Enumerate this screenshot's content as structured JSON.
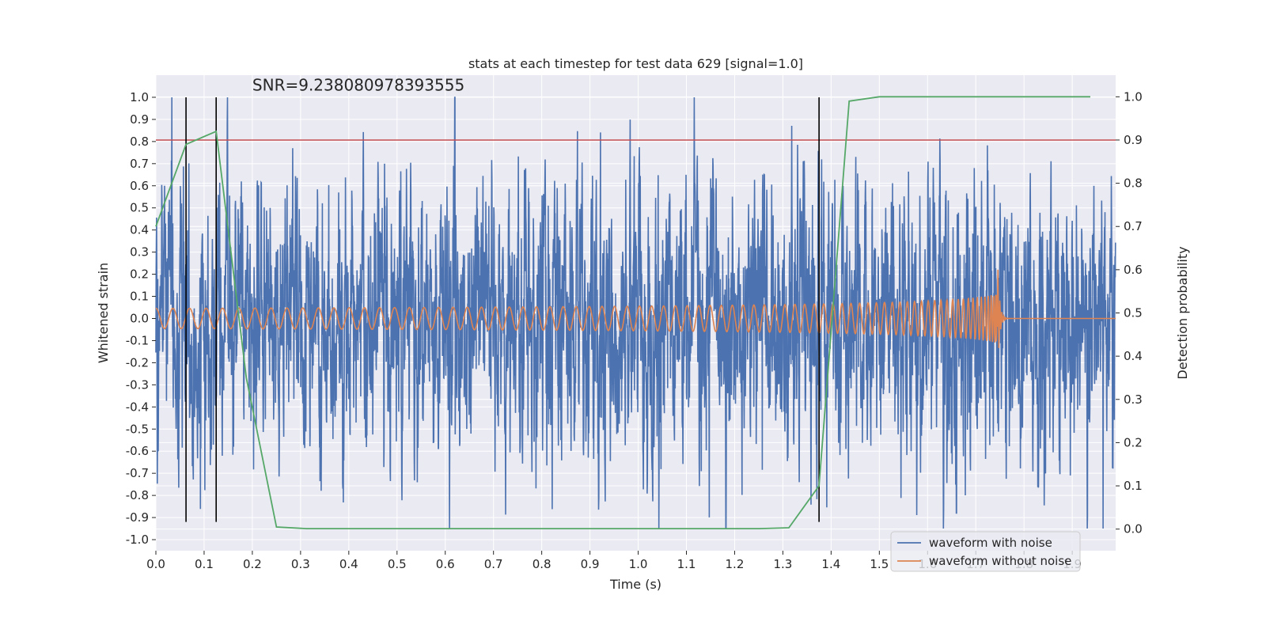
{
  "chart_data": {
    "type": "line",
    "title": "stats at each timestep for test data 629 [signal=1.0]",
    "annotation": "SNR=9.238080978393555",
    "xlabel": "Time (s)",
    "ylabel_left": "Whitened strain",
    "ylabel_right": "Detection probability",
    "xlim": [
      0.0,
      1.99
    ],
    "ylim_left": [
      -1.05,
      1.1
    ],
    "ylim_right": [
      -0.05,
      1.05
    ],
    "x_ticks": [
      "0.0",
      "0.1",
      "0.2",
      "0.3",
      "0.4",
      "0.5",
      "0.6",
      "0.7",
      "0.8",
      "0.9",
      "1.0",
      "1.1",
      "1.2",
      "1.3",
      "1.4",
      "1.5",
      "1.6",
      "1.7",
      "1.8",
      "1.9"
    ],
    "y_left_ticks": [
      "1.0",
      "0.9",
      "0.8",
      "0.7",
      "0.6",
      "0.5",
      "0.4",
      "0.3",
      "0.2",
      "0.1",
      "0.0",
      "-0.1",
      "-0.2",
      "-0.3",
      "-0.4",
      "-0.5",
      "-0.6",
      "-0.7",
      "-0.8",
      "-0.9",
      "-1.0"
    ],
    "y_right_ticks": [
      "1.0",
      "0.9",
      "0.8",
      "0.7",
      "0.6",
      "0.5",
      "0.4",
      "0.3",
      "0.2",
      "0.1",
      "0.0"
    ],
    "threshold": {
      "axis": "right",
      "value": 0.9,
      "color": "#c44e52"
    },
    "vertical_markers": {
      "x": [
        0.0625,
        0.125,
        1.375
      ],
      "ymin": -0.92,
      "ymax": 1.0,
      "color": "#000000"
    },
    "series": [
      {
        "name": "waveform with noise",
        "color": "#4c72b0",
        "axis": "left",
        "description": "dense whitened noisy strain, approx. uniform-gaussian noise with std ~0.3, peaks near +1.0 at t=0.62 and -0.88 at t=1.66",
        "sample_rate": 2048,
        "duration": 2.0
      },
      {
        "name": "waveform without noise",
        "color": "#dd8452",
        "axis": "left",
        "description": "chirp signal, amplitude ~0.05 rising to ~0.3 at merger t=1.74, ringdown to 0 by t=1.76"
      },
      {
        "name": "detection probability",
        "color": "#55a868",
        "axis": "right",
        "x": [
          0.0,
          0.0625,
          0.125,
          0.1875,
          0.25,
          0.3125,
          0.375,
          0.4375,
          0.5,
          0.5625,
          0.625,
          0.6875,
          0.75,
          0.8125,
          0.875,
          0.9375,
          1.0,
          1.0625,
          1.125,
          1.1875,
          1.25,
          1.3125,
          1.375,
          1.4375,
          1.5,
          1.5625,
          1.625,
          1.6875,
          1.75,
          1.8125,
          1.875,
          1.9375
        ],
        "values": [
          0.7,
          0.89,
          0.92,
          0.35,
          0.005,
          0.001,
          0.001,
          0.001,
          0.001,
          0.001,
          0.001,
          0.001,
          0.001,
          0.001,
          0.001,
          0.001,
          0.001,
          0.001,
          0.001,
          0.001,
          0.001,
          0.003,
          0.1,
          0.99,
          1.0,
          1.0,
          1.0,
          1.0,
          1.0,
          1.0,
          1.0,
          1.0
        ]
      }
    ],
    "legend": {
      "placement": "lower-right",
      "entries": [
        {
          "label": "waveform with noise",
          "color": "#4c72b0"
        },
        {
          "label": "waveform without noise",
          "color": "#dd8452"
        }
      ]
    },
    "style": {
      "background": "#eaeaf2",
      "grid": true,
      "grid_color": "#ffffff"
    }
  }
}
